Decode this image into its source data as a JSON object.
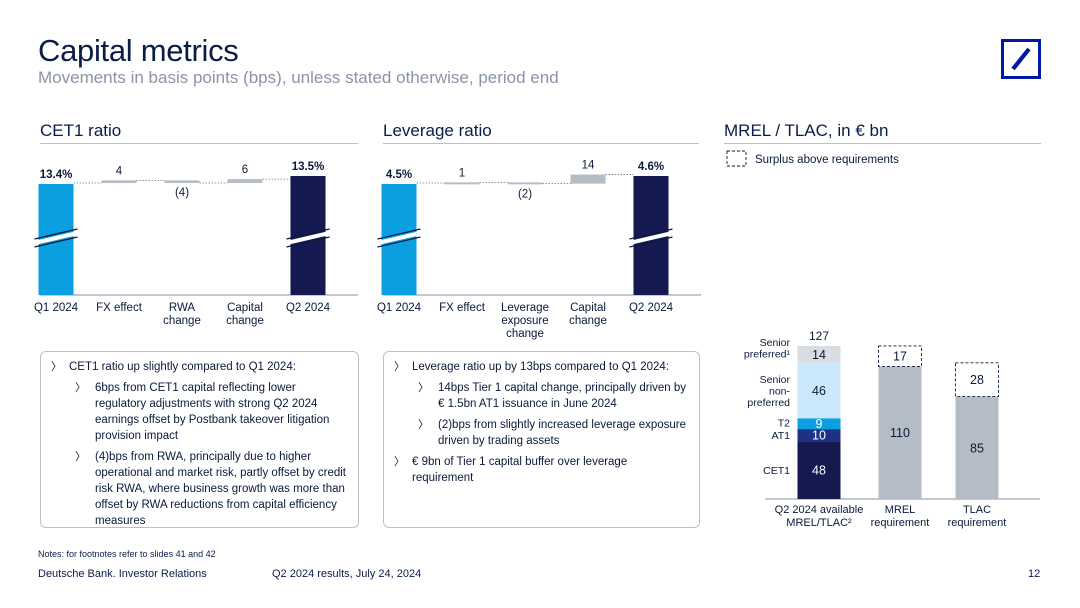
{
  "header": {
    "title": "Capital metrics",
    "subtitle": "Movements in basis points (bps), unless stated otherwise, period end"
  },
  "colors": {
    "light_blue": "#0b9ee0",
    "dark_navy": "#141a4f",
    "gray": "#b4bcc6",
    "at1_blue": "#1d3185",
    "pale_blue": "#cbe8fa",
    "light_gray": "#d7dde3",
    "brand_blue": "#0018a8"
  },
  "icons": {
    "logo": "deutsche-bank-slash-logo"
  },
  "sections": {
    "cet1_title": "CET1 ratio",
    "leverage_title": "Leverage ratio",
    "mrel_title": "MREL / TLAC, in € bn"
  },
  "chart_data": [
    {
      "type": "bar",
      "subtype": "waterfall",
      "title": "CET1 ratio",
      "categories": [
        "Q1 2024",
        "FX effect",
        "RWA change",
        "Capital change",
        "Q2 2024"
      ],
      "category_lines": [
        [
          "Q1 2024"
        ],
        [
          "FX effect"
        ],
        [
          "RWA",
          "change"
        ],
        [
          "Capital",
          "change"
        ],
        [
          "Q2 2024"
        ]
      ],
      "kinds": [
        "total",
        "delta",
        "delta",
        "delta",
        "total"
      ],
      "values": [
        13.4,
        4,
        -4,
        6,
        13.5
      ],
      "labels": [
        "13.4%",
        "4",
        "(4)",
        "6",
        "13.5%"
      ],
      "unit_note": "totals in %, movements in bps",
      "axis_break": true
    },
    {
      "type": "bar",
      "subtype": "waterfall",
      "title": "Leverage ratio",
      "categories": [
        "Q1 2024",
        "FX effect",
        "Leverage exposure change",
        "Capital change",
        "Q2 2024"
      ],
      "category_lines": [
        [
          "Q1 2024"
        ],
        [
          "FX effect"
        ],
        [
          "Leverage",
          "exposure",
          "change"
        ],
        [
          "Capital",
          "change"
        ],
        [
          "Q2 2024"
        ]
      ],
      "kinds": [
        "total",
        "delta",
        "delta",
        "delta",
        "total"
      ],
      "values": [
        4.5,
        1,
        -2,
        14,
        4.6
      ],
      "labels": [
        "4.5%",
        "1",
        "(2)",
        "14",
        "4.6%"
      ],
      "unit_note": "totals in %, movements in bps",
      "axis_break": true
    },
    {
      "type": "bar",
      "subtype": "stacked",
      "title": "MREL / TLAC, in € bn",
      "legend": "Surplus above requirements",
      "categories": [
        "Q2 2024 available MREL/TLAC²",
        "MREL requirement",
        "TLAC requirement"
      ],
      "category_lines": [
        [
          "Q2 2024 available",
          "MREL/TLAC²"
        ],
        [
          "MREL",
          "requirement"
        ],
        [
          "TLAC",
          "requirement"
        ]
      ],
      "available": {
        "total": 127,
        "segments": [
          {
            "name": "CET1",
            "label_lines": [
              "CET1"
            ],
            "value": 48
          },
          {
            "name": "AT1",
            "label_lines": [
              "AT1"
            ],
            "value": 10
          },
          {
            "name": "T2",
            "label_lines": [
              "T2"
            ],
            "value": 9
          },
          {
            "name": "Senior non-preferred",
            "label_lines": [
              "Senior",
              "non-",
              "preferred"
            ],
            "value": 46
          },
          {
            "name": "Senior preferred¹",
            "label_lines": [
              "Senior",
              "preferred¹"
            ],
            "value": 14
          }
        ]
      },
      "requirements": [
        {
          "name": "MREL requirement",
          "value": 110,
          "surplus": 17
        },
        {
          "name": "TLAC requirement",
          "value": 85,
          "surplus": 28
        }
      ],
      "ylim": [
        0,
        127
      ]
    }
  ],
  "commentary": {
    "cet1": [
      {
        "level": 1,
        "text": "CET1 ratio up slightly compared to Q1 2024:"
      },
      {
        "level": 2,
        "text": "6bps from CET1 capital reflecting lower regulatory adjustments with strong Q2 2024 earnings offset by Postbank takeover litigation provision impact"
      },
      {
        "level": 2,
        "text": "(4)bps from RWA, principally due to higher operational and market risk, partly offset by credit risk RWA, where business growth was more than offset by RWA reductions from capital efficiency measures"
      }
    ],
    "leverage": [
      {
        "level": 1,
        "text": "Leverage ratio up by 13bps compared to Q1 2024:"
      },
      {
        "level": 2,
        "text": "14bps Tier 1 capital change, principally driven by € 1.5bn AT1 issuance in June 2024"
      },
      {
        "level": 2,
        "text": "(2)bps from slightly increased leverage exposure driven by trading assets"
      },
      {
        "level": 1,
        "text": "€ 9bn of Tier 1 capital buffer over leverage requirement"
      }
    ]
  },
  "footer": {
    "notes": "Notes: for footnotes refer to slides 41 and 42",
    "left": "Deutsche Bank. Investor Relations",
    "middle": "Q2 2024 results, July 24, 2024",
    "page": "12"
  }
}
